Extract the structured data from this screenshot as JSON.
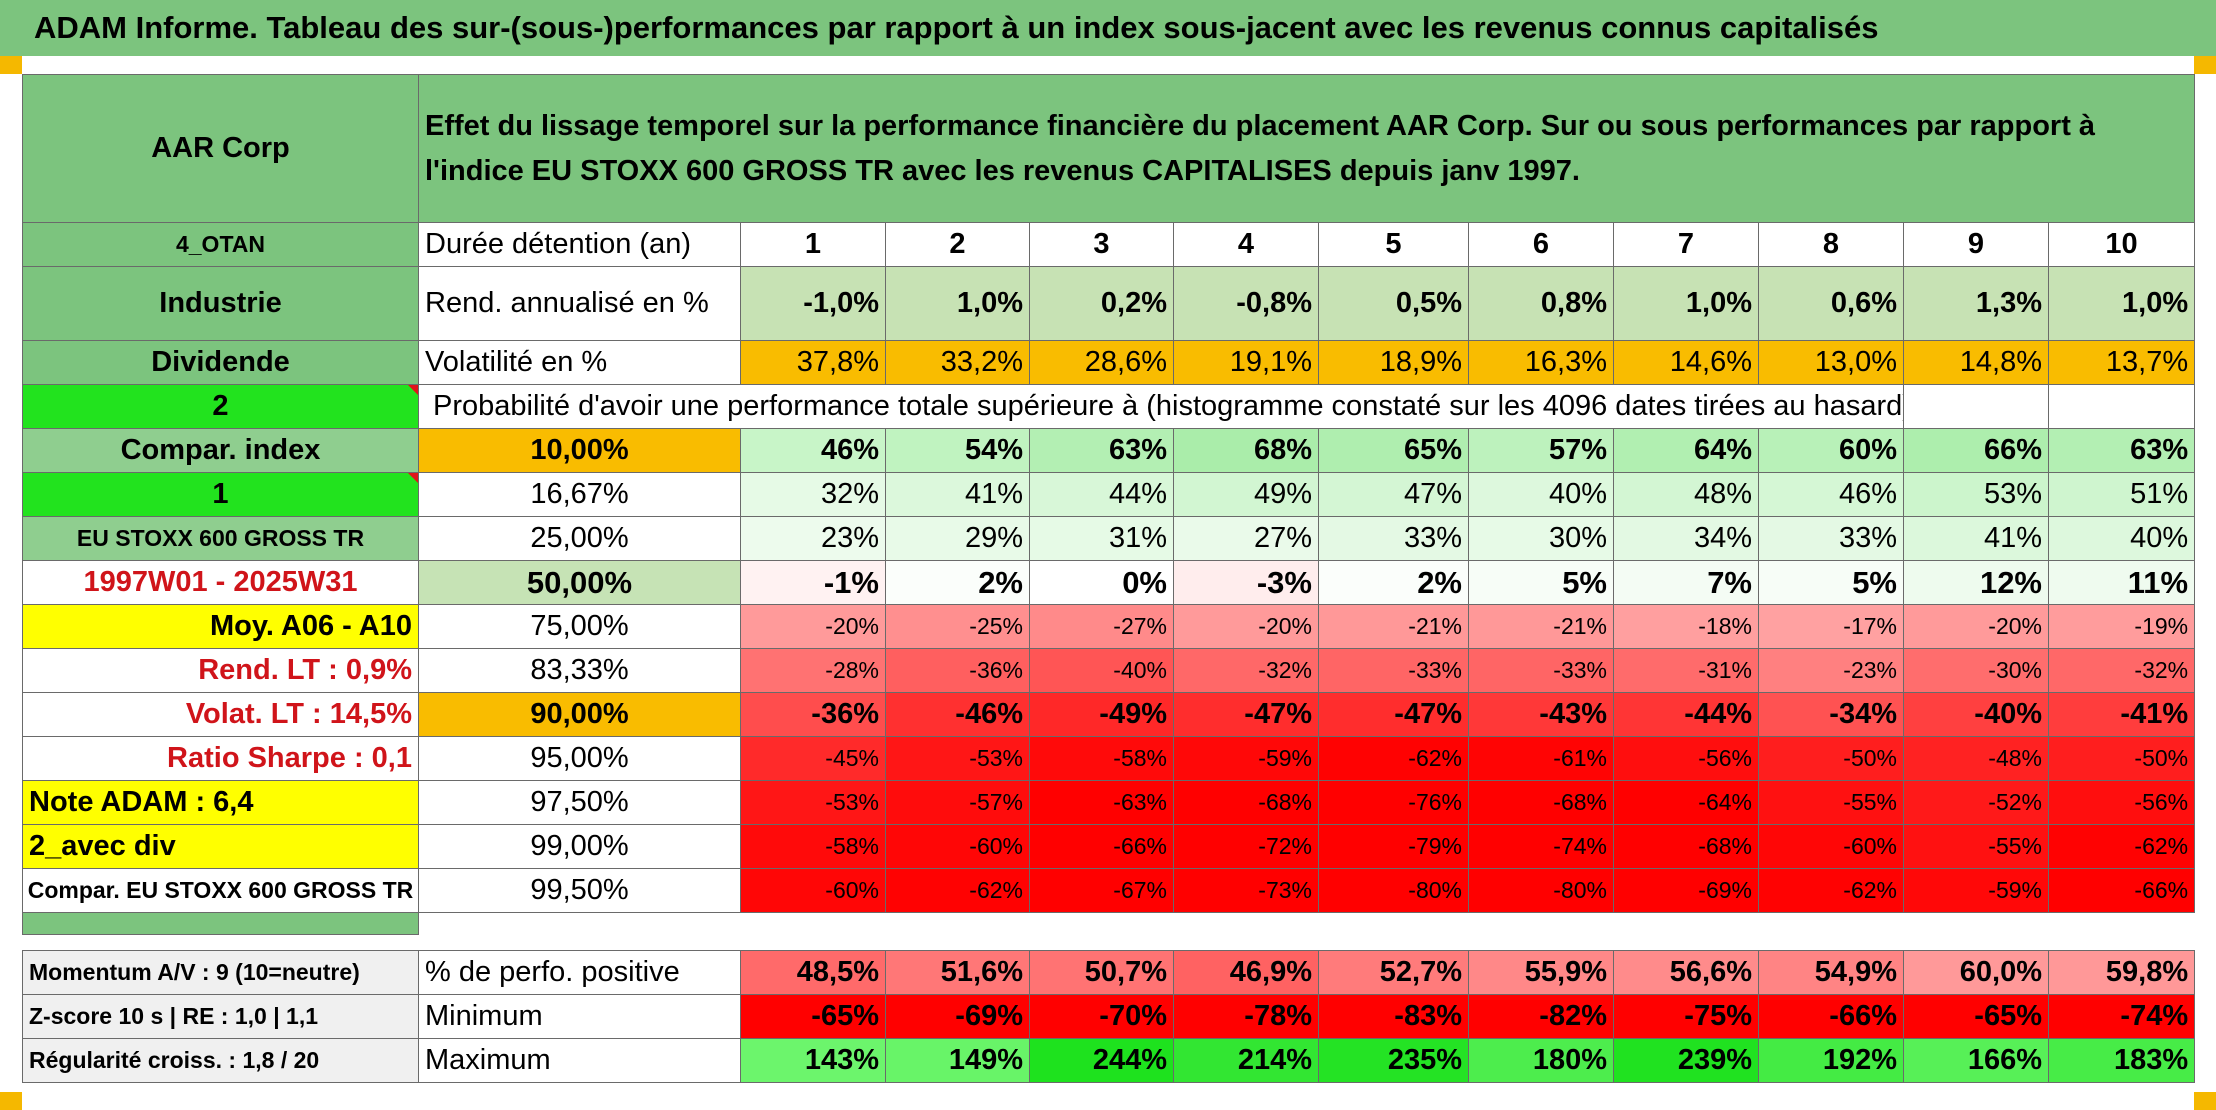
{
  "title": "ADAM Informe. Tableau des sur-(sous-)performances par rapport à un index sous-jacent avec les revenus connus capitalisés",
  "header": {
    "company": "AAR Corp",
    "description_line1": "Effet du lissage temporel sur la performance financière du placement AAR Corp. Sur ou sous performances par rapport à",
    "description_line2": "l'indice EU STOXX 600 GROSS TR avec les revenus CAPITALISES depuis janv 1997."
  },
  "left_labels": {
    "code": "4_OTAN",
    "sector": "Industrie",
    "dividend": "Dividende",
    "two": "2",
    "compar_index": "Compar. index",
    "one": "1",
    "index_name": "EU STOXX 600 GROSS TR",
    "period": "1997W01 - 2025W31",
    "moy": "Moy. A06 - A10",
    "rend_lt": "Rend. LT :    0,9%",
    "volat_lt": "Volat. LT :    14,5%",
    "ratio_sharpe": "Ratio Sharpe :    0,1",
    "note_adam": "Note ADAM : 6,4",
    "avec_div": "2_avec div",
    "compar_full": "Compar. EU STOXX 600 GROSS TR",
    "momentum": "Momentum A/V : 9 (10=neutre)",
    "zscore": "Z-score 10 s | RE : 1,0 | 1,1",
    "regularite": "Régularité croiss. : 1,8 / 20"
  },
  "row_labels": {
    "duree": "Durée détention (an)",
    "rend": "Rend. annualisé en %",
    "volat": "Volatilité en %",
    "proba": "Probabilité d'avoir une performance totale supérieure à (histogramme constaté sur les 4096 dates tirées au hasard)",
    "pos": "% de perfo. positive",
    "min": "Minimum",
    "max": "Maximum"
  },
  "years": [
    "1",
    "2",
    "3",
    "4",
    "5",
    "6",
    "7",
    "8",
    "9",
    "10"
  ],
  "rend": [
    "-1,0%",
    "1,0%",
    "0,2%",
    "-0,8%",
    "0,5%",
    "0,8%",
    "1,0%",
    "0,6%",
    "1,3%",
    "1,0%"
  ],
  "volat": [
    "37,8%",
    "33,2%",
    "28,6%",
    "19,1%",
    "18,9%",
    "16,3%",
    "14,6%",
    "13,0%",
    "14,8%",
    "13,7%"
  ],
  "quantiles": [
    {
      "pct": "10,00%",
      "values": [
        "46%",
        "54%",
        "63%",
        "68%",
        "65%",
        "57%",
        "64%",
        "60%",
        "66%",
        "63%"
      ],
      "colors": [
        "#c8f5c8",
        "#c0f3c0",
        "#b3efb3",
        "#aaedaa",
        "#afeeaf",
        "#bdf2bd",
        "#b1efb1",
        "#b8f1b8",
        "#adeead",
        "#b3efb3"
      ]
    },
    {
      "pct": "16,67%",
      "values": [
        "32%",
        "41%",
        "44%",
        "49%",
        "47%",
        "40%",
        "48%",
        "46%",
        "53%",
        "51%"
      ],
      "colors": [
        "#e6fae6",
        "#dcf8dc",
        "#d8f7d8",
        "#d2f6d2",
        "#d4f6d4",
        "#ddf8dd",
        "#d3f6d3",
        "#d5f7d5",
        "#ccf5cc",
        "#cff5cf"
      ]
    },
    {
      "pct": "25,00%",
      "values": [
        "23%",
        "29%",
        "31%",
        "27%",
        "33%",
        "30%",
        "34%",
        "33%",
        "41%",
        "40%"
      ],
      "colors": [
        "#edfbed",
        "#e8fae8",
        "#e6fae6",
        "#eafaea",
        "#e4f9e4",
        "#e7fae7",
        "#e3f9e3",
        "#e4f9e4",
        "#dcf8dc",
        "#ddf8dd"
      ]
    },
    {
      "pct": "50,00%",
      "values": [
        "-1%",
        "2%",
        "0%",
        "-3%",
        "2%",
        "5%",
        "7%",
        "5%",
        "12%",
        "11%"
      ],
      "colors": [
        "#fff2f2",
        "#fbfefb",
        "#ffffff",
        "#ffeded",
        "#fbfefb",
        "#f7fdf7",
        "#f4fcf4",
        "#f7fdf7",
        "#eefbee",
        "#effbef"
      ]
    },
    {
      "pct": "75,00%",
      "values": [
        "-20%",
        "-25%",
        "-27%",
        "-20%",
        "-21%",
        "-21%",
        "-18%",
        "-17%",
        "-20%",
        "-19%"
      ],
      "colors": [
        "#ff9a9a",
        "#ff8f8f",
        "#ff8a8a",
        "#ff9a9a",
        "#ff9898",
        "#ff9898",
        "#ff9f9f",
        "#ffa1a1",
        "#ff9a9a",
        "#ff9c9c"
      ]
    },
    {
      "pct": "83,33%",
      "values": [
        "-28%",
        "-36%",
        "-40%",
        "-32%",
        "-33%",
        "-33%",
        "-31%",
        "-23%",
        "-30%",
        "-32%"
      ],
      "colors": [
        "#ff7272",
        "#ff5f5f",
        "#ff5555",
        "#ff6868",
        "#ff6565",
        "#ff6565",
        "#ff6b6b",
        "#ff8080",
        "#ff6d6d",
        "#ff6868"
      ]
    },
    {
      "pct": "90,00%",
      "values": [
        "-36%",
        "-46%",
        "-49%",
        "-47%",
        "-47%",
        "-43%",
        "-44%",
        "-34%",
        "-40%",
        "-41%"
      ],
      "colors": [
        "#ff4d4d",
        "#ff3030",
        "#ff2828",
        "#ff2d2d",
        "#ff2d2d",
        "#ff3838",
        "#ff3535",
        "#ff5252",
        "#ff4040",
        "#ff3d3d"
      ]
    },
    {
      "pct": "95,00%",
      "values": [
        "-45%",
        "-53%",
        "-58%",
        "-59%",
        "-62%",
        "-61%",
        "-56%",
        "-50%",
        "-48%",
        "-50%"
      ],
      "colors": [
        "#ff2a2a",
        "#ff1616",
        "#ff0a0a",
        "#ff0808",
        "#ff0202",
        "#ff0404",
        "#ff0e0e",
        "#ff1e1e",
        "#ff2222",
        "#ff1e1e"
      ]
    },
    {
      "pct": "97,50%",
      "values": [
        "-53%",
        "-57%",
        "-63%",
        "-68%",
        "-76%",
        "-68%",
        "-64%",
        "-55%",
        "-52%",
        "-56%"
      ],
      "colors": [
        "#ff1616",
        "#ff0c0c",
        "#ff0000",
        "#ff0000",
        "#ff0000",
        "#ff0000",
        "#ff0000",
        "#ff1111",
        "#ff1919",
        "#ff0e0e"
      ]
    },
    {
      "pct": "99,00%",
      "values": [
        "-58%",
        "-60%",
        "-66%",
        "-72%",
        "-79%",
        "-74%",
        "-68%",
        "-60%",
        "-55%",
        "-62%"
      ],
      "colors": [
        "#ff0a0a",
        "#ff0606",
        "#ff0000",
        "#ff0000",
        "#ff0000",
        "#ff0000",
        "#ff0000",
        "#ff0606",
        "#ff1111",
        "#ff0202"
      ]
    },
    {
      "pct": "99,50%",
      "values": [
        "-60%",
        "-62%",
        "-67%",
        "-73%",
        "-80%",
        "-80%",
        "-69%",
        "-62%",
        "-59%",
        "-66%"
      ],
      "colors": [
        "#ff0606",
        "#ff0202",
        "#ff0000",
        "#ff0000",
        "#ff0000",
        "#ff0000",
        "#ff0000",
        "#ff0202",
        "#ff0808",
        "#ff0000"
      ]
    }
  ],
  "pos": [
    "48,5%",
    "51,6%",
    "50,7%",
    "46,9%",
    "52,7%",
    "55,9%",
    "56,6%",
    "54,9%",
    "60,0%",
    "59,8%"
  ],
  "pos_colors": [
    "#ff6a6a",
    "#ff7777",
    "#ff7373",
    "#ff6262",
    "#ff7b7b",
    "#ff8888",
    "#ff8b8b",
    "#ff8484",
    "#ff9999",
    "#ff9898"
  ],
  "min": [
    "-65%",
    "-69%",
    "-70%",
    "-78%",
    "-83%",
    "-82%",
    "-75%",
    "-66%",
    "-65%",
    "-74%"
  ],
  "max": [
    "143%",
    "149%",
    "244%",
    "214%",
    "235%",
    "180%",
    "239%",
    "192%",
    "166%",
    "183%"
  ],
  "max_colors": [
    "#6cf56c",
    "#68f468",
    "#1ee21e",
    "#32e632",
    "#24e324",
    "#4ded4d",
    "#20e220",
    "#44eb44",
    "#57f057",
    "#47ec47"
  ]
}
